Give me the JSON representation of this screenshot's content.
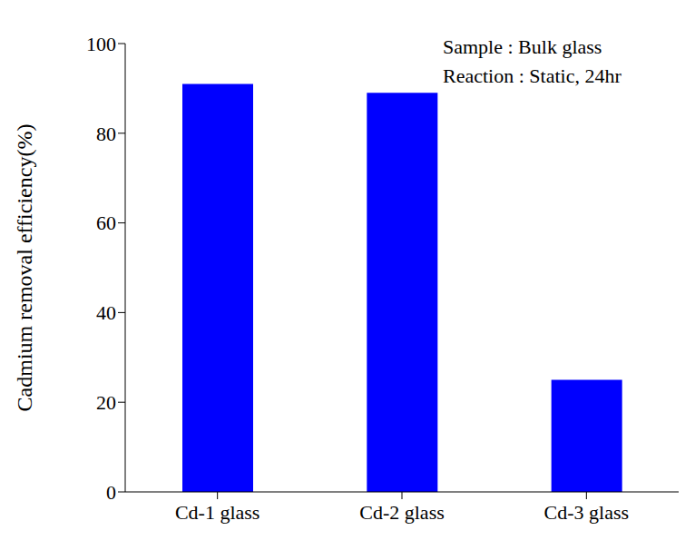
{
  "chart_data": {
    "type": "bar",
    "y_label": "Cadmium removal efficiency(%)",
    "annotations": [
      "Sample : Bulk glass",
      "Reaction : Static, 24hr"
    ],
    "categories": [
      "Cd-1 glass",
      "Cd-2 glass",
      "Cd-3 glass"
    ],
    "values": [
      91,
      89,
      25
    ],
    "color": "#0000ff",
    "ylim": [
      0,
      100
    ],
    "yticks": [
      0,
      20,
      40,
      60,
      80,
      100
    ],
    "grid": false
  }
}
